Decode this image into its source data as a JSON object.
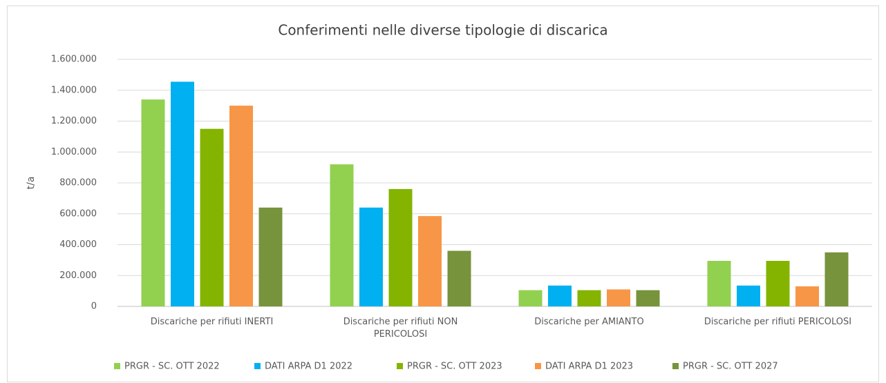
{
  "chart_data": {
    "type": "bar",
    "title": "Conferimenti nelle diverse tipologie di discarica",
    "y_label": "t/a",
    "categories": [
      "Discariche per rifiuti INERTI",
      "Discariche per rifiuti NON PERICOLOSI",
      "Discariche per AMIANTO",
      "Discariche per rifiuti PERICOLOSI"
    ],
    "series": [
      {
        "name": "PRGR - SC. OTT 2022",
        "color": "#92d050",
        "values": [
          1340000,
          920000,
          105000,
          295000
        ]
      },
      {
        "name": "DATI ARPA D1 2022",
        "color": "#00b0f0",
        "values": [
          1455000,
          640000,
          135000,
          135000
        ]
      },
      {
        "name": "PRGR - SC. OTT 2023",
        "color": "#84b400",
        "values": [
          1150000,
          760000,
          105000,
          295000
        ]
      },
      {
        "name": "DATI ARPA D1 2023",
        "color": "#f79646",
        "values": [
          1300000,
          585000,
          110000,
          130000
        ]
      },
      {
        "name": "PRGR - SC. OTT 2027",
        "color": "#77933c",
        "values": [
          640000,
          360000,
          105000,
          350000
        ]
      }
    ],
    "ylim": [
      0,
      1600000
    ],
    "yticks": [
      0,
      {
        "value": 200000,
        "label": "200.000"
      },
      {
        "value": 400000,
        "label": "400.000"
      },
      {
        "value": 600000,
        "label": "600.000"
      },
      {
        "value": 800000,
        "label": "800.000"
      },
      {
        "value": 1000000,
        "label": "1.000.000"
      },
      {
        "value": 1200000,
        "label": "1.200.000"
      },
      {
        "value": 1400000,
        "label": "1.400.000"
      },
      {
        "value": 1600000,
        "label": "1.600.000"
      }
    ],
    "grid": true,
    "legend": "bottom"
  }
}
